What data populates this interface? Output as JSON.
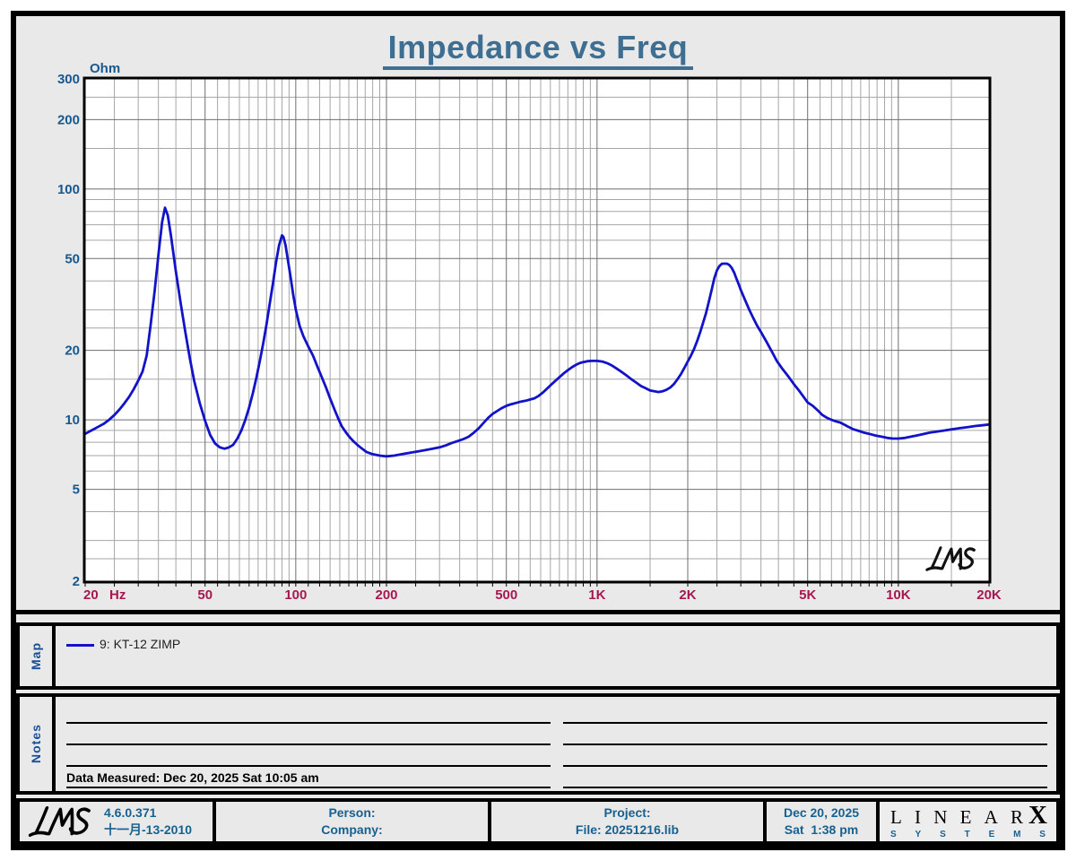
{
  "title": "Impedance vs Freq",
  "colors": {
    "accent_title": "#3e6f92",
    "y_axis_text": "#17588f",
    "x_axis_text": "#a81850",
    "curve": "#1212c8",
    "grid_minor": "#a6a6a6",
    "grid_major": "#6e6e6e",
    "section_label": "#1a4f96",
    "footer_text": "#176191"
  },
  "chart_data": {
    "type": "line",
    "title": "Impedance vs Freq",
    "x_axis": {
      "unit": "Hz",
      "scale": "log",
      "min": 20,
      "max": 20000,
      "major_ticks": [
        20,
        50,
        100,
        200,
        500,
        1000,
        2000,
        5000,
        10000,
        20000
      ],
      "major_labels": [
        "20",
        "50",
        "100",
        "200",
        "500",
        "1K",
        "2K",
        "5K",
        "10K",
        "20K"
      ],
      "minor_ticks": [
        25,
        30,
        35,
        40,
        45,
        55,
        60,
        65,
        70,
        75,
        80,
        85,
        90,
        95,
        110,
        120,
        130,
        140,
        150,
        160,
        170,
        180,
        190,
        250,
        300,
        350,
        400,
        450,
        550,
        600,
        650,
        700,
        750,
        800,
        850,
        900,
        950,
        1500,
        2500,
        3000,
        3500,
        4000,
        4500,
        5500,
        6000,
        6500,
        7000,
        7500,
        8000,
        8500,
        9000,
        9500,
        15000
      ]
    },
    "y_axis": {
      "unit": "Ohm",
      "scale": "log",
      "min": 2,
      "max": 300,
      "major_ticks": [
        2,
        5,
        10,
        20,
        50,
        100,
        200,
        300
      ],
      "major_labels": [
        "2",
        "5",
        "10",
        "20",
        "50",
        "100",
        "200",
        "300"
      ],
      "minor_ticks": [
        2.5,
        3,
        4,
        6,
        7,
        8,
        9,
        15,
        25,
        30,
        40,
        60,
        70,
        80,
        90,
        150,
        250
      ]
    },
    "grid": true,
    "legend_position": "map-band-below",
    "watermark": "LMS",
    "series": [
      {
        "name": "9: KT-12 ZIMP",
        "color": "#1212c8",
        "points": [
          [
            20,
            8.7
          ],
          [
            21,
            9.0
          ],
          [
            22,
            9.3
          ],
          [
            23,
            9.6
          ],
          [
            24,
            10.0
          ],
          [
            25,
            10.5
          ],
          [
            26,
            11.1
          ],
          [
            27,
            11.8
          ],
          [
            28,
            12.6
          ],
          [
            29,
            13.6
          ],
          [
            30,
            14.8
          ],
          [
            31,
            16.2
          ],
          [
            32,
            19
          ],
          [
            33,
            26
          ],
          [
            34,
            36
          ],
          [
            35,
            52
          ],
          [
            36,
            72
          ],
          [
            36.8,
            83
          ],
          [
            37.6,
            77
          ],
          [
            38.5,
            63
          ],
          [
            40,
            44
          ],
          [
            41.5,
            32
          ],
          [
            43,
            24
          ],
          [
            44.5,
            18.5
          ],
          [
            46,
            14.8
          ],
          [
            48,
            11.8
          ],
          [
            50,
            9.9
          ],
          [
            52,
            8.6
          ],
          [
            54,
            7.9
          ],
          [
            56,
            7.6
          ],
          [
            58,
            7.5
          ],
          [
            60,
            7.6
          ],
          [
            62,
            7.8
          ],
          [
            64,
            8.3
          ],
          [
            66,
            9.0
          ],
          [
            68,
            10.0
          ],
          [
            70,
            11.3
          ],
          [
            72,
            13.0
          ],
          [
            74,
            15.2
          ],
          [
            76,
            18
          ],
          [
            78,
            21.5
          ],
          [
            80,
            26
          ],
          [
            82,
            32
          ],
          [
            84,
            39
          ],
          [
            86,
            48
          ],
          [
            88,
            57
          ],
          [
            90,
            63
          ],
          [
            91,
            62
          ],
          [
            92.5,
            57
          ],
          [
            94,
            50
          ],
          [
            96,
            42
          ],
          [
            98,
            35
          ],
          [
            100,
            30
          ],
          [
            103,
            25.5
          ],
          [
            106,
            23
          ],
          [
            110,
            20.8
          ],
          [
            114,
            19
          ],
          [
            118,
            17
          ],
          [
            122,
            15.3
          ],
          [
            126,
            13.8
          ],
          [
            130,
            12.4
          ],
          [
            134,
            11.2
          ],
          [
            138,
            10.2
          ],
          [
            142,
            9.4
          ],
          [
            146,
            8.9
          ],
          [
            150,
            8.5
          ],
          [
            155,
            8.1
          ],
          [
            160,
            7.8
          ],
          [
            166,
            7.5
          ],
          [
            172,
            7.25
          ],
          [
            180,
            7.1
          ],
          [
            190,
            7.0
          ],
          [
            200,
            6.95
          ],
          [
            212,
            7.0
          ],
          [
            225,
            7.1
          ],
          [
            240,
            7.2
          ],
          [
            255,
            7.3
          ],
          [
            270,
            7.4
          ],
          [
            285,
            7.5
          ],
          [
            300,
            7.6
          ],
          [
            315,
            7.75
          ],
          [
            330,
            7.95
          ],
          [
            345,
            8.1
          ],
          [
            360,
            8.25
          ],
          [
            375,
            8.45
          ],
          [
            390,
            8.8
          ],
          [
            405,
            9.2
          ],
          [
            420,
            9.7
          ],
          [
            435,
            10.2
          ],
          [
            450,
            10.6
          ],
          [
            465,
            10.9
          ],
          [
            480,
            11.2
          ],
          [
            500,
            11.5
          ],
          [
            520,
            11.7
          ],
          [
            540,
            11.85
          ],
          [
            560,
            12.0
          ],
          [
            580,
            12.1
          ],
          [
            600,
            12.25
          ],
          [
            620,
            12.4
          ],
          [
            640,
            12.7
          ],
          [
            660,
            13.1
          ],
          [
            680,
            13.6
          ],
          [
            700,
            14.1
          ],
          [
            725,
            14.7
          ],
          [
            750,
            15.3
          ],
          [
            775,
            15.9
          ],
          [
            800,
            16.4
          ],
          [
            825,
            16.9
          ],
          [
            850,
            17.3
          ],
          [
            875,
            17.6
          ],
          [
            900,
            17.8
          ],
          [
            930,
            17.95
          ],
          [
            960,
            18.0
          ],
          [
            1000,
            18.0
          ],
          [
            1040,
            17.9
          ],
          [
            1080,
            17.6
          ],
          [
            1120,
            17.2
          ],
          [
            1160,
            16.7
          ],
          [
            1200,
            16.2
          ],
          [
            1250,
            15.6
          ],
          [
            1300,
            15.0
          ],
          [
            1350,
            14.5
          ],
          [
            1400,
            14.0
          ],
          [
            1450,
            13.7
          ],
          [
            1500,
            13.4
          ],
          [
            1550,
            13.3
          ],
          [
            1600,
            13.2
          ],
          [
            1650,
            13.3
          ],
          [
            1700,
            13.5
          ],
          [
            1750,
            13.8
          ],
          [
            1800,
            14.3
          ],
          [
            1850,
            15.0
          ],
          [
            1900,
            15.8
          ],
          [
            1950,
            16.8
          ],
          [
            2000,
            17.9
          ],
          [
            2050,
            19
          ],
          [
            2100,
            20.3
          ],
          [
            2150,
            22
          ],
          [
            2200,
            24
          ],
          [
            2250,
            26.4
          ],
          [
            2300,
            29
          ],
          [
            2350,
            32.5
          ],
          [
            2400,
            36.5
          ],
          [
            2450,
            41
          ],
          [
            2500,
            44.5
          ],
          [
            2550,
            46.5
          ],
          [
            2600,
            47.5
          ],
          [
            2700,
            47.5
          ],
          [
            2750,
            46.8
          ],
          [
            2800,
            45.5
          ],
          [
            2850,
            43.5
          ],
          [
            2900,
            41
          ],
          [
            2950,
            38.8
          ],
          [
            3000,
            36.5
          ],
          [
            3100,
            33
          ],
          [
            3200,
            30
          ],
          [
            3300,
            27.6
          ],
          [
            3400,
            25.6
          ],
          [
            3500,
            24
          ],
          [
            3650,
            21.8
          ],
          [
            3800,
            19.8
          ],
          [
            3950,
            18
          ],
          [
            4100,
            16.8
          ],
          [
            4300,
            15.5
          ],
          [
            4500,
            14.3
          ],
          [
            4700,
            13.3
          ],
          [
            5000,
            11.9
          ],
          [
            5200,
            11.5
          ],
          [
            5400,
            11.0
          ],
          [
            5600,
            10.5
          ],
          [
            5800,
            10.2
          ],
          [
            6000,
            10.0
          ],
          [
            6200,
            9.85
          ],
          [
            6400,
            9.75
          ],
          [
            6600,
            9.55
          ],
          [
            6800,
            9.35
          ],
          [
            7100,
            9.1
          ],
          [
            7400,
            8.95
          ],
          [
            7700,
            8.8
          ],
          [
            8000,
            8.7
          ],
          [
            8400,
            8.55
          ],
          [
            8800,
            8.45
          ],
          [
            9200,
            8.35
          ],
          [
            9600,
            8.3
          ],
          [
            10000,
            8.3
          ],
          [
            10500,
            8.35
          ],
          [
            11000,
            8.45
          ],
          [
            11500,
            8.55
          ],
          [
            12000,
            8.65
          ],
          [
            12700,
            8.8
          ],
          [
            13500,
            8.9
          ],
          [
            14300,
            9.0
          ],
          [
            15000,
            9.1
          ],
          [
            16000,
            9.2
          ],
          [
            17000,
            9.3
          ],
          [
            18000,
            9.4
          ],
          [
            19000,
            9.47
          ],
          [
            20000,
            9.55
          ]
        ]
      }
    ]
  },
  "map": {
    "label": "Map",
    "legend": {
      "label": "9: KT-12 ZIMP",
      "color": "#1212c8"
    }
  },
  "notes": {
    "label": "Notes",
    "measured": "Data Measured: Dec 20, 2025  Sat 10:05 am"
  },
  "footer": {
    "logo": "LMS",
    "version": "4.6.0.371",
    "build_date": "十一月-13-2010",
    "person_label": "Person:",
    "company_label": "Company:",
    "project_label": "Project:",
    "file_label": "File: 20251216.lib",
    "date": "Dec 20, 2025",
    "time": "Sat  1:38 pm",
    "brand": {
      "name": "LINEAR",
      "x": "X",
      "sub": "SYSTEMS"
    }
  }
}
